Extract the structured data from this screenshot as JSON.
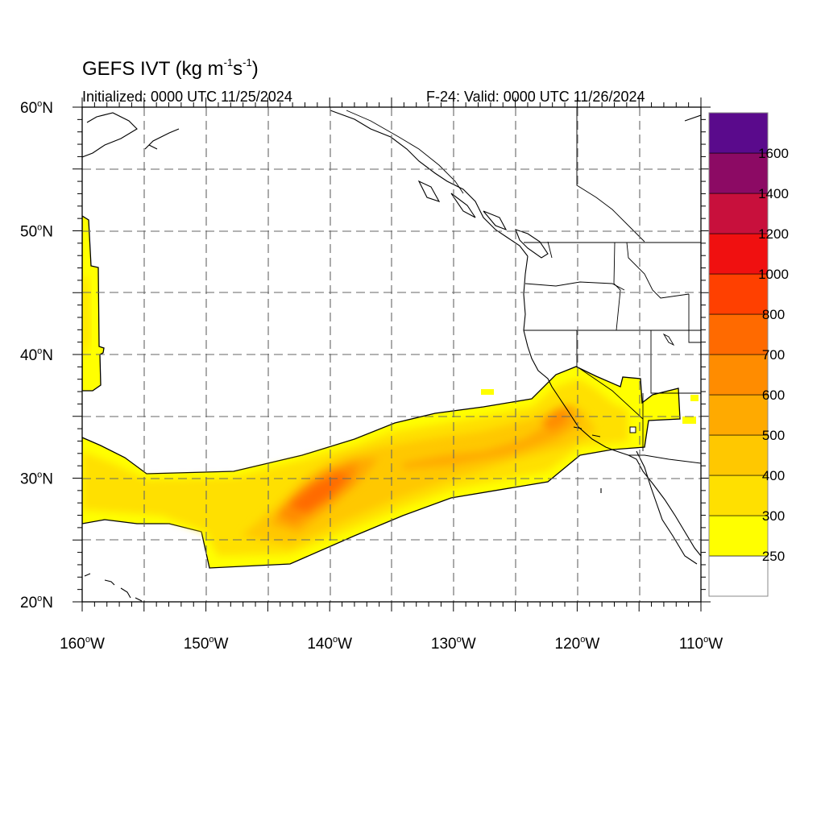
{
  "header": {
    "title_main": "GEFS IVT (kg m",
    "title_exp1": "-1",
    "title_mid": "s",
    "title_exp2": "-1",
    "title_end": ")",
    "initialized": "Initialized: 0000 UTC 11/25/2024",
    "valid": "F-24: Valid: 0000 UTC 11/26/2024"
  },
  "map": {
    "lon_range": [
      -160,
      -110
    ],
    "lat_range": [
      20,
      60
    ],
    "lat_labels": [
      "60",
      "50",
      "40",
      "30",
      "20"
    ],
    "lat_suffix": "N",
    "lon_labels": [
      "160",
      "150",
      "140",
      "130",
      "120",
      "110"
    ],
    "lon_suffix": "W",
    "degree": "o"
  },
  "colorbar": {
    "labels": [
      "1600",
      "1400",
      "1200",
      "1000",
      "800",
      "700",
      "600",
      "500",
      "400",
      "300",
      "250"
    ],
    "colors": [
      "#ffffff",
      "#ffff00",
      "#ffe000",
      "#ffc800",
      "#ffaa00",
      "#ff8c00",
      "#ff6a00",
      "#ff4000",
      "#f01010",
      "#c8103c",
      "#8c0a64",
      "#5a0a8c"
    ]
  },
  "chart_data": {
    "type": "heatmap",
    "title": "GEFS IVT (kg m-1s-1)",
    "xlabel": "",
    "ylabel": "",
    "x_ticks": [
      "160W",
      "150W",
      "140W",
      "130W",
      "120W",
      "110W"
    ],
    "y_ticks": [
      "20N",
      "30N",
      "40N",
      "50N",
      "60N"
    ],
    "xlim": [
      -160,
      -110
    ],
    "ylim": [
      20,
      60
    ],
    "levels": [
      250,
      300,
      400,
      500,
      600,
      700,
      800,
      1000,
      1200,
      1400,
      1600
    ],
    "grid": true,
    "features": [
      {
        "name": "atmospheric river",
        "lon_extent": [
          -160,
          -113
        ],
        "lat_extent": [
          23,
          39
        ],
        "max_ivt_approx": 800,
        "max_location": [
          -141,
          29
        ]
      },
      {
        "name": "western edge band",
        "lon_extent": [
          -160,
          -158
        ],
        "lat_extent": [
          37,
          51
        ],
        "ivt_range": [
          250,
          400
        ]
      }
    ]
  }
}
